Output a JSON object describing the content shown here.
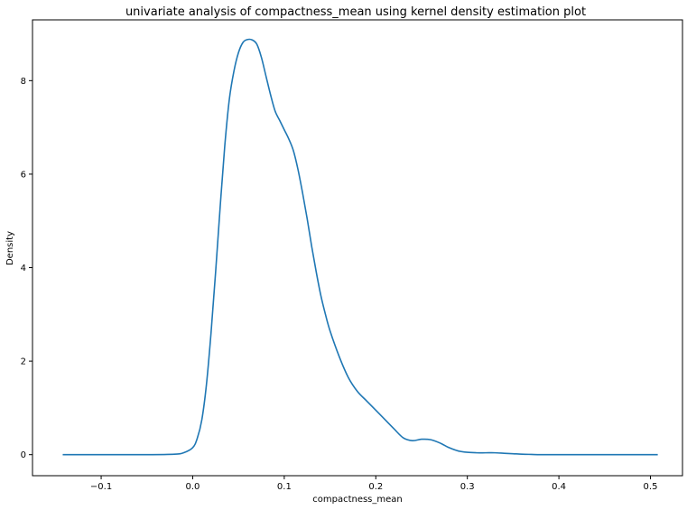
{
  "chart_data": {
    "type": "line",
    "title": "univariate analysis of compactness_mean using kernel density estimation plot",
    "xlabel": "compactness_mean",
    "ylabel": "Density",
    "xlim": [
      -0.175,
      0.535
    ],
    "ylim": [
      -0.45,
      9.3
    ],
    "x_ticks": [
      -0.1,
      0.0,
      0.1,
      0.2,
      0.3,
      0.4,
      0.5
    ],
    "x_tick_labels": [
      "−0.1",
      "0.0",
      "0.1",
      "0.2",
      "0.3",
      "0.4",
      "0.5"
    ],
    "y_ticks": [
      0,
      2,
      4,
      6,
      8
    ],
    "y_tick_labels": [
      "0",
      "2",
      "4",
      "6",
      "8"
    ],
    "grid": false,
    "line_color": "#1f77b4",
    "series": [
      {
        "x": [
          -0.142,
          -0.1,
          -0.05,
          -0.02,
          -0.01,
          0.0,
          0.005,
          0.01,
          0.015,
          0.02,
          0.025,
          0.03,
          0.035,
          0.04,
          0.045,
          0.05,
          0.055,
          0.06,
          0.065,
          0.07,
          0.075,
          0.08,
          0.085,
          0.09,
          0.095,
          0.1,
          0.105,
          0.11,
          0.115,
          0.12,
          0.125,
          0.13,
          0.135,
          0.14,
          0.145,
          0.15,
          0.16,
          0.17,
          0.18,
          0.19,
          0.2,
          0.21,
          0.22,
          0.23,
          0.24,
          0.25,
          0.26,
          0.27,
          0.28,
          0.29,
          0.3,
          0.31,
          0.32,
          0.33,
          0.34,
          0.35,
          0.36,
          0.37,
          0.38,
          0.4,
          0.45,
          0.508
        ],
        "y": [
          0.0,
          0.0,
          0.0,
          0.01,
          0.04,
          0.15,
          0.35,
          0.75,
          1.5,
          2.6,
          3.9,
          5.3,
          6.6,
          7.6,
          8.2,
          8.6,
          8.82,
          8.88,
          8.87,
          8.78,
          8.5,
          8.1,
          7.7,
          7.35,
          7.15,
          6.95,
          6.75,
          6.5,
          6.1,
          5.6,
          5.05,
          4.45,
          3.9,
          3.4,
          3.0,
          2.65,
          2.1,
          1.65,
          1.35,
          1.15,
          0.95,
          0.75,
          0.55,
          0.36,
          0.3,
          0.33,
          0.32,
          0.25,
          0.15,
          0.08,
          0.05,
          0.04,
          0.04,
          0.04,
          0.03,
          0.02,
          0.01,
          0.005,
          0.0,
          0.0,
          0.0,
          0.0
        ]
      }
    ]
  }
}
